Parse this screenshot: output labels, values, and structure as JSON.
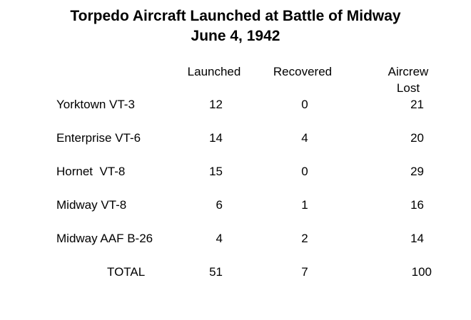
{
  "title": {
    "line1": "Torpedo Aircraft Launched at Battle of Midway",
    "line2": "June 4, 1942"
  },
  "columns": {
    "launched": "Launched",
    "recovered": "Recovered",
    "aircrew_line1": "Aircrew",
    "aircrew_line2": "Lost"
  },
  "rows": [
    {
      "name": "Yorktown VT-3",
      "launched": "12",
      "recovered": "0",
      "lost": "21"
    },
    {
      "name": "Enterprise VT-6",
      "launched": "14",
      "recovered": "4",
      "lost": "20"
    },
    {
      "name": "Hornet  VT-8",
      "launched": "15",
      "recovered": "0",
      "lost": "29"
    },
    {
      "name": "Midway VT-8",
      "launched": "6",
      "recovered": "1",
      "lost": "16"
    },
    {
      "name": "Midway AAF B-26",
      "launched": "4",
      "recovered": "2",
      "lost": "14"
    }
  ],
  "total": {
    "name": "TOTAL",
    "launched": "51",
    "recovered": "7",
    "lost": "100"
  }
}
